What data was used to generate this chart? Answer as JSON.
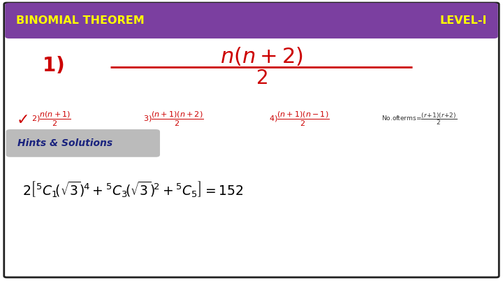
{
  "title_left": "BINOMIAL THEOREM",
  "title_right": "LEVEL-I",
  "header_bg": "#7B3FA0",
  "header_text_color": "#FFFF00",
  "slide_bg": "#FFFFFF",
  "border_color": "#222222",
  "answer_color": "#CC0000",
  "hints_label": "Hints & Solutions",
  "hints_bg": "#AAAAAA",
  "hints_text_color": "#1a237e",
  "solution_color": "#000000",
  "checkmark_color": "#CC0000",
  "fig_width": 7.2,
  "fig_height": 4.05,
  "dpi": 100
}
